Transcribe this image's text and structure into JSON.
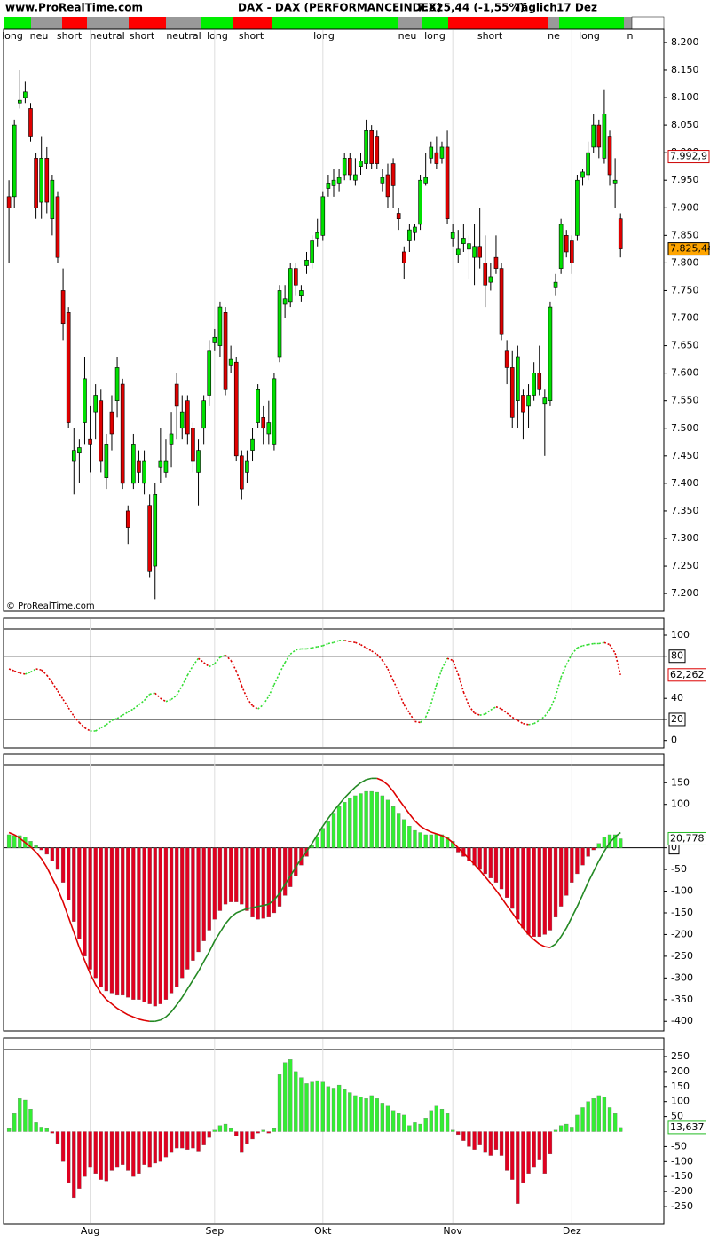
{
  "header": {
    "site": "www.ProRealTime.com",
    "title": "DAX - DAX (PERFORMANCEINDEX)",
    "quote": "7.825,44 (-1,55%)",
    "period": "Täglich",
    "date": "17 Dez"
  },
  "signals": [
    "long",
    "neu",
    "short",
    "neutral",
    "short",
    "neutral",
    "long",
    "short",
    "long",
    "neu",
    "long",
    "short",
    "ne",
    "long",
    "n"
  ],
  "time_axis": {
    "xlim": [
      -1,
      121
    ],
    "xticks": [
      {
        "value": 15,
        "label": "Aug"
      },
      {
        "value": 38,
        "label": "Sep"
      },
      {
        "value": 58,
        "label": "Okt"
      },
      {
        "value": 82,
        "label": "Nov"
      },
      {
        "value": 104,
        "label": "Dez"
      }
    ]
  },
  "chart_data": [
    {
      "type": "candlestick",
      "up_color": "#00e000",
      "down_color": "#e00000",
      "watermark": "© ProRealTime.com",
      "ylim": [
        7168,
        8224
      ],
      "yticks": [
        {
          "value": 7200,
          "label": "7.200"
        },
        {
          "value": 7250,
          "label": "7.250"
        },
        {
          "value": 7300,
          "label": "7.300"
        },
        {
          "value": 7350,
          "label": "7.350"
        },
        {
          "value": 7400,
          "label": "7.400"
        },
        {
          "value": 7450,
          "label": "7.450"
        },
        {
          "value": 7500,
          "label": "7.500"
        },
        {
          "value": 7550,
          "label": "7.550"
        },
        {
          "value": 7600,
          "label": "7.600"
        },
        {
          "value": 7650,
          "label": "7.650"
        },
        {
          "value": 7700,
          "label": "7.700"
        },
        {
          "value": 7750,
          "label": "7.750"
        },
        {
          "value": 7800,
          "label": "7.800"
        },
        {
          "value": 7850,
          "label": "7.850"
        },
        {
          "value": 7900,
          "label": "7.900"
        },
        {
          "value": 7950,
          "label": "7.950"
        },
        {
          "value": 8000,
          "label": "8.000"
        },
        {
          "value": 8050,
          "label": "8.050"
        },
        {
          "value": 8100,
          "label": "8.100"
        },
        {
          "value": 8150,
          "label": "8.150"
        },
        {
          "value": 8200,
          "label": "8.200"
        }
      ],
      "value_labels": [
        {
          "value": 7992.9,
          "label": "7.992,9",
          "color": "#cc0000",
          "fill": "#ffffff"
        },
        {
          "value": 7825.44,
          "label": "7.825,44",
          "color": "#000000",
          "fill": "#ffa500"
        }
      ],
      "open": [
        7920,
        7920,
        8090,
        8100,
        8080,
        7990,
        7910,
        7990,
        7880,
        7920,
        7750,
        7710,
        7440,
        7455,
        7510,
        7480,
        7530,
        7550,
        7410,
        7530,
        7550,
        7580,
        7350,
        7400,
        7440,
        7400,
        7360,
        7250,
        7430,
        7420,
        7470,
        7580,
        7500,
        7550,
        7500,
        7420,
        7500,
        7560,
        7655,
        7650,
        7710,
        7615,
        7620,
        7450,
        7420,
        7460,
        7510,
        7520,
        7490,
        7470,
        7630,
        7725,
        7730,
        7790,
        7740,
        7795,
        7800,
        7845,
        7850,
        7935,
        7940,
        7945,
        7960,
        7990,
        7950,
        7975,
        7980,
        8040,
        8030,
        7945,
        7960,
        7980,
        7890,
        7820,
        7840,
        7855,
        7870,
        7945,
        7990,
        8000,
        7990,
        8010,
        7845,
        7815,
        7835,
        7825,
        7810,
        7830,
        7800,
        7765,
        7810,
        7790,
        7640,
        7610,
        7550,
        7560,
        7540,
        7560,
        7600,
        7545,
        7550,
        7755,
        7790,
        7850,
        7840,
        7850,
        7955,
        7960,
        8010,
        8050,
        7990,
        8030,
        7945,
        7880
      ],
      "high": [
        7950,
        8060,
        8150,
        8130,
        8090,
        8000,
        8030,
        8010,
        7960,
        7930,
        7790,
        7720,
        7500,
        7480,
        7630,
        7540,
        7580,
        7570,
        7490,
        7560,
        7630,
        7590,
        7360,
        7490,
        7460,
        7460,
        7380,
        7400,
        7500,
        7480,
        7530,
        7600,
        7560,
        7560,
        7510,
        7480,
        7560,
        7660,
        7680,
        7730,
        7720,
        7650,
        7630,
        7460,
        7460,
        7500,
        7580,
        7540,
        7550,
        7600,
        7760,
        7760,
        7800,
        7800,
        7760,
        7820,
        7850,
        7880,
        7930,
        7960,
        7970,
        7970,
        8000,
        8000,
        7990,
        8000,
        8060,
        8050,
        8040,
        7970,
        7980,
        7990,
        7900,
        7830,
        7870,
        7870,
        7960,
        8000,
        8020,
        8030,
        8020,
        8040,
        7870,
        7860,
        7870,
        7850,
        7870,
        7900,
        7850,
        7800,
        7850,
        7800,
        7660,
        7640,
        7650,
        7570,
        7580,
        7620,
        7650,
        7570,
        7730,
        7780,
        7880,
        7860,
        7850,
        7960,
        7970,
        8020,
        8070,
        8060,
        8115,
        8040,
        7990,
        7890
      ],
      "low": [
        7800,
        7900,
        8080,
        8090,
        8020,
        7880,
        7880,
        7890,
        7850,
        7800,
        7660,
        7500,
        7380,
        7400,
        7470,
        7420,
        7480,
        7420,
        7390,
        7460,
        7520,
        7390,
        7290,
        7390,
        7400,
        7380,
        7230,
        7190,
        7400,
        7410,
        7430,
        7480,
        7480,
        7470,
        7420,
        7360,
        7470,
        7540,
        7640,
        7630,
        7560,
        7600,
        7440,
        7370,
        7400,
        7440,
        7500,
        7470,
        7470,
        7460,
        7620,
        7700,
        7720,
        7740,
        7730,
        7780,
        7790,
        7830,
        7840,
        7920,
        7920,
        7930,
        7950,
        7950,
        7940,
        7960,
        7970,
        7970,
        7970,
        7930,
        7900,
        7900,
        7860,
        7770,
        7820,
        7840,
        7860,
        7940,
        7980,
        7970,
        7980,
        7870,
        7830,
        7800,
        7820,
        7770,
        7760,
        7790,
        7720,
        7750,
        7780,
        7660,
        7580,
        7500,
        7500,
        7480,
        7500,
        7550,
        7560,
        7450,
        7540,
        7740,
        7780,
        7810,
        7780,
        7840,
        7940,
        7950,
        8000,
        7990,
        7980,
        7940,
        7900,
        7810
      ],
      "close": [
        7900,
        8050,
        8095,
        8110,
        8030,
        7900,
        7990,
        7910,
        7950,
        7810,
        7690,
        7510,
        7460,
        7465,
        7590,
        7470,
        7560,
        7440,
        7470,
        7490,
        7610,
        7400,
        7320,
        7470,
        7420,
        7440,
        7240,
        7380,
        7440,
        7440,
        7490,
        7540,
        7530,
        7490,
        7440,
        7460,
        7550,
        7640,
        7665,
        7720,
        7570,
        7625,
        7450,
        7390,
        7440,
        7480,
        7570,
        7500,
        7510,
        7590,
        7750,
        7735,
        7790,
        7760,
        7750,
        7805,
        7840,
        7855,
        7920,
        7945,
        7950,
        7955,
        7990,
        7960,
        7960,
        7985,
        8040,
        7980,
        7980,
        7955,
        7920,
        7940,
        7880,
        7800,
        7860,
        7865,
        7950,
        7955,
        8010,
        7980,
        8010,
        7880,
        7855,
        7825,
        7845,
        7835,
        7830,
        7810,
        7760,
        7775,
        7790,
        7670,
        7610,
        7520,
        7630,
        7530,
        7560,
        7600,
        7570,
        7555,
        7720,
        7765,
        7870,
        7820,
        7800,
        7950,
        7965,
        8000,
        8050,
        8010,
        8070,
        7960,
        7950,
        7825.44
      ]
    },
    {
      "type": "line",
      "up_color": "#33dd33",
      "down_color": "#dd0000",
      "ylim": [
        -7,
        116
      ],
      "yticks": [
        0,
        20,
        40,
        80,
        100
      ],
      "levels": [
        20,
        80
      ],
      "value_labels": [
        {
          "value": 62.262,
          "label": "62,262",
          "color": "#dd0000",
          "fill": "#ffffff"
        }
      ],
      "values": [
        68,
        66,
        64,
        63,
        65,
        68,
        67,
        62,
        55,
        47,
        39,
        31,
        23,
        17,
        12,
        9,
        9,
        12,
        15,
        19,
        21,
        24,
        27,
        30,
        34,
        38,
        44,
        45,
        40,
        37,
        39,
        43,
        52,
        62,
        71,
        78,
        74,
        70,
        73,
        79,
        81,
        76,
        66,
        52,
        40,
        33,
        30,
        34,
        42,
        53,
        64,
        74,
        82,
        86,
        87,
        87,
        88,
        89,
        90,
        92,
        93,
        95,
        95,
        94,
        93,
        91,
        88,
        85,
        82,
        76,
        68,
        57,
        46,
        34,
        26,
        18,
        17,
        22,
        35,
        53,
        68,
        78,
        76,
        63,
        46,
        33,
        26,
        24,
        25,
        29,
        32,
        30,
        26,
        22,
        19,
        16,
        15,
        16,
        19,
        23,
        30,
        42,
        60,
        72,
        82,
        88,
        90,
        91,
        92,
        92,
        93,
        91,
        83,
        62.262
      ]
    },
    {
      "type": "combo",
      "up_color": "#33ee33",
      "down_color": "#e00020",
      "line_up_color": "#228822",
      "line_down_color": "#dd0000",
      "ylim": [
        -422,
        216
      ],
      "yticks": [
        150,
        100,
        0,
        -50,
        -100,
        -150,
        -200,
        -250,
        -300,
        -350,
        -400
      ],
      "levels": [
        0
      ],
      "value_labels": [
        {
          "value": 20.778,
          "label": "20,778",
          "color": "#22bb22",
          "fill": "#ffffff"
        }
      ],
      "values": [
        30,
        28,
        28,
        25,
        15,
        5,
        -5,
        -15,
        -30,
        -50,
        -80,
        -120,
        -170,
        -210,
        -250,
        -280,
        -300,
        -320,
        -330,
        -335,
        -340,
        -340,
        -345,
        -350,
        -350,
        -355,
        -360,
        -365,
        -360,
        -350,
        -335,
        -320,
        -300,
        -280,
        -260,
        -240,
        -215,
        -190,
        -165,
        -145,
        -130,
        -125,
        -125,
        -130,
        -145,
        -160,
        -165,
        -163,
        -160,
        -150,
        -135,
        -110,
        -90,
        -65,
        -40,
        -20,
        5,
        25,
        45,
        60,
        80,
        95,
        105,
        115,
        120,
        125,
        130,
        130,
        128,
        120,
        110,
        95,
        80,
        65,
        50,
        40,
        35,
        30,
        30,
        32,
        30,
        25,
        15,
        -10,
        -20,
        -30,
        -40,
        -50,
        -60,
        -70,
        -80,
        -95,
        -115,
        -140,
        -165,
        -185,
        -200,
        -205,
        -205,
        -200,
        -190,
        -160,
        -135,
        -110,
        -80,
        -60,
        -40,
        -20,
        -5,
        10,
        25,
        30,
        30,
        20.778
      ],
      "line": [
        35,
        30,
        22,
        12,
        2,
        -10,
        -25,
        -45,
        -70,
        -95,
        -125,
        -160,
        -195,
        -230,
        -260,
        -290,
        -315,
        -335,
        -350,
        -360,
        -370,
        -378,
        -385,
        -390,
        -395,
        -398,
        -400,
        -400,
        -397,
        -390,
        -378,
        -362,
        -345,
        -325,
        -305,
        -285,
        -262,
        -240,
        -215,
        -195,
        -175,
        -160,
        -150,
        -145,
        -140,
        -138,
        -135,
        -133,
        -130,
        -120,
        -105,
        -85,
        -65,
        -45,
        -25,
        -8,
        10,
        30,
        50,
        68,
        85,
        100,
        115,
        128,
        140,
        150,
        157,
        160,
        160,
        155,
        145,
        130,
        112,
        95,
        78,
        62,
        50,
        42,
        36,
        32,
        28,
        22,
        12,
        0,
        -12,
        -25,
        -38,
        -52,
        -67,
        -82,
        -98,
        -115,
        -133,
        -150,
        -168,
        -185,
        -200,
        -212,
        -222,
        -228,
        -230,
        -222,
        -205,
        -185,
        -160,
        -135,
        -108,
        -80,
        -55,
        -30,
        -8,
        12,
        25,
        35
      ]
    },
    {
      "type": "bar",
      "up_color": "#33ee33",
      "down_color": "#e00020",
      "ylim": [
        -309,
        312
      ],
      "yticks": [
        250,
        200,
        150,
        100,
        50,
        -50,
        -100,
        -150,
        -200,
        -250
      ],
      "value_labels": [
        {
          "value": 13.637,
          "label": "13,637",
          "color": "#22bb22",
          "fill": "#ffffff"
        }
      ],
      "values": [
        10,
        60,
        110,
        105,
        75,
        30,
        15,
        10,
        -5,
        -40,
        -100,
        -170,
        -220,
        -190,
        -150,
        -120,
        -140,
        -160,
        -165,
        -130,
        -120,
        -110,
        -130,
        -150,
        -140,
        -110,
        -120,
        -105,
        -100,
        -85,
        -70,
        -55,
        -55,
        -60,
        -55,
        -65,
        -45,
        -20,
        5,
        20,
        25,
        10,
        -15,
        -70,
        -40,
        -25,
        -5,
        5,
        -5,
        10,
        190,
        230,
        240,
        200,
        180,
        160,
        165,
        170,
        165,
        150,
        145,
        155,
        140,
        130,
        120,
        115,
        110,
        120,
        110,
        95,
        85,
        70,
        60,
        55,
        20,
        30,
        25,
        45,
        70,
        85,
        75,
        60,
        5,
        -10,
        -30,
        -50,
        -60,
        -45,
        -70,
        -80,
        -60,
        -80,
        -130,
        -160,
        -240,
        -170,
        -140,
        -120,
        -95,
        -140,
        -75,
        5,
        20,
        25,
        15,
        55,
        80,
        100,
        110,
        120,
        115,
        80,
        60,
        13.637
      ]
    }
  ]
}
